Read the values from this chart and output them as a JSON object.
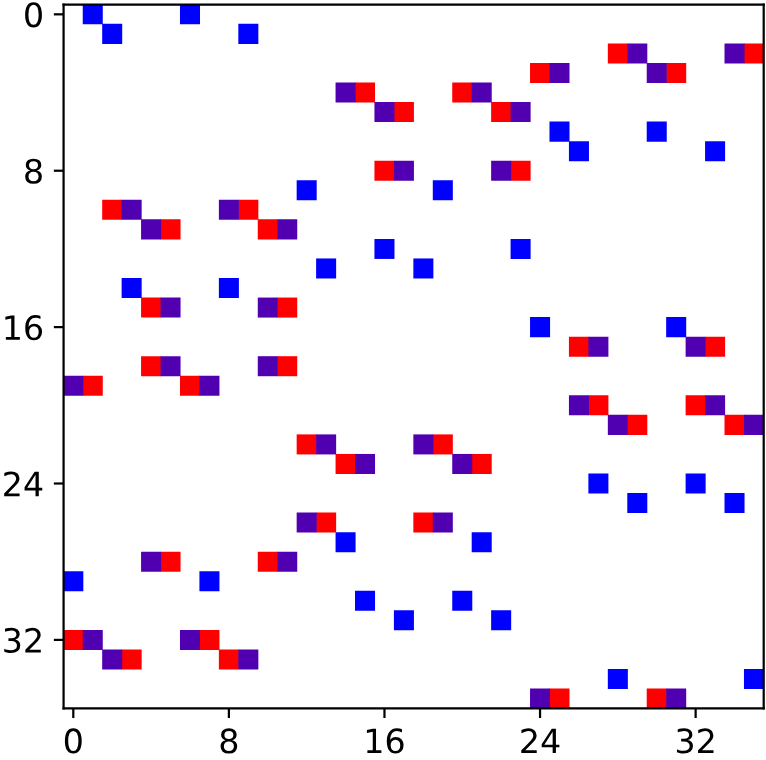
{
  "chart_data": {
    "type": "scatter",
    "marker": "square",
    "grid": false,
    "legend": false,
    "xlim": [
      -0.5,
      35.5
    ],
    "ylim": [
      35.5,
      -0.5
    ],
    "xticks": [
      0,
      8,
      16,
      24,
      32
    ],
    "yticks": [
      0,
      8,
      16,
      24,
      32
    ],
    "series": [
      {
        "color": "#0000ff",
        "x": [
          1,
          2,
          6,
          9,
          12,
          16,
          13,
          3,
          8,
          25,
          30,
          26,
          33,
          19,
          23,
          18,
          24,
          31,
          14,
          0,
          7,
          15,
          17,
          27,
          32,
          29,
          34,
          21,
          20,
          22,
          28,
          35
        ],
        "values": [
          0,
          1,
          0,
          1,
          9,
          12,
          13,
          14,
          14,
          6,
          6,
          7,
          7,
          9,
          12,
          13,
          16,
          16,
          27,
          29,
          29,
          30,
          31,
          24,
          24,
          25,
          25,
          27,
          30,
          31,
          34,
          34
        ]
      },
      {
        "color": "#ff0000",
        "x": [
          15,
          17,
          16,
          2,
          9,
          5,
          10,
          4,
          11,
          28,
          35,
          24,
          31,
          20,
          22,
          23,
          26,
          33,
          4,
          11,
          1,
          6,
          12,
          14,
          13,
          5,
          10,
          0,
          7,
          3,
          8,
          27,
          32,
          29,
          34,
          19,
          21,
          18,
          25,
          30
        ],
        "values": [
          4,
          5,
          8,
          10,
          10,
          11,
          11,
          15,
          15,
          2,
          2,
          3,
          3,
          4,
          5,
          8,
          17,
          17,
          18,
          18,
          19,
          19,
          22,
          23,
          26,
          28,
          28,
          32,
          32,
          33,
          33,
          20,
          20,
          21,
          21,
          22,
          23,
          26,
          35,
          35
        ]
      },
      {
        "color": "#5000b0",
        "x": [
          14,
          16,
          17,
          3,
          8,
          4,
          11,
          5,
          10,
          29,
          34,
          25,
          30,
          21,
          23,
          22,
          27,
          32,
          5,
          10,
          0,
          7,
          13,
          15,
          12,
          4,
          11,
          1,
          6,
          2,
          9,
          26,
          33,
          28,
          35,
          18,
          20,
          19,
          24,
          31
        ],
        "values": [
          4,
          5,
          8,
          10,
          10,
          11,
          11,
          15,
          15,
          2,
          2,
          3,
          3,
          4,
          5,
          8,
          17,
          17,
          18,
          18,
          19,
          19,
          22,
          23,
          26,
          28,
          28,
          32,
          32,
          33,
          33,
          20,
          20,
          21,
          21,
          22,
          23,
          26,
          35,
          35
        ]
      }
    ]
  }
}
